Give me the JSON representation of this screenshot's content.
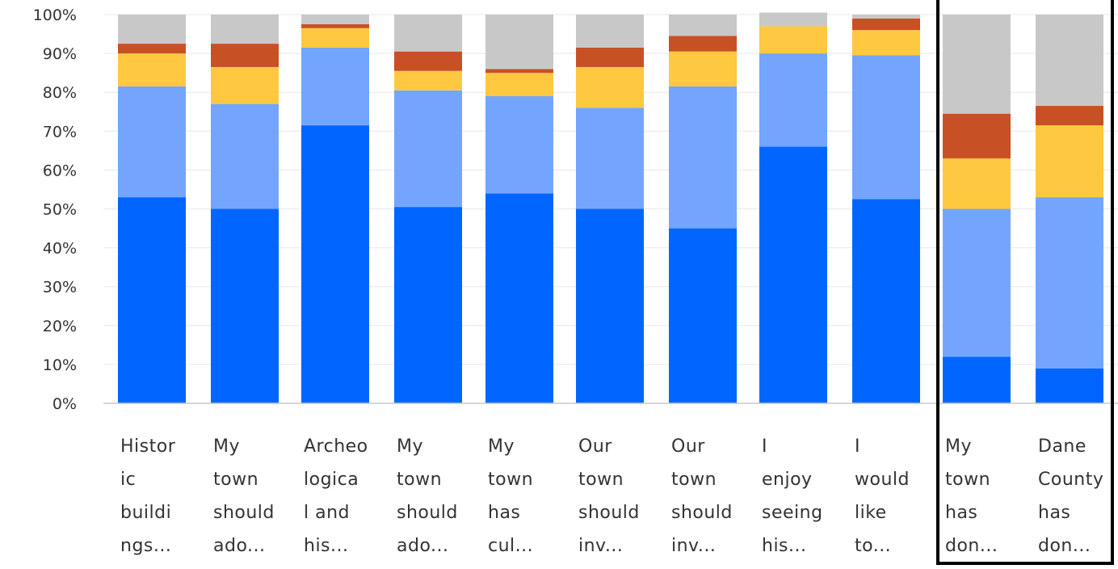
{
  "chart_data": {
    "type": "bar",
    "stacked": true,
    "title": "",
    "xlabel": "",
    "ylabel": "",
    "ylim": [
      0,
      100
    ],
    "y_ticks": [
      "0%",
      "10%",
      "20%",
      "30%",
      "40%",
      "50%",
      "60%",
      "70%",
      "80%",
      "90%",
      "100%"
    ],
    "grid": true,
    "legend": "none",
    "categories": [
      "Histor\nic\nbuildi\nngs...",
      "My\ntown\nshould\nado...",
      "Archeo\nlogica\nl and\nhis...",
      "My\ntown\nshould\nado...",
      "My\ntown\nhas\ncul...",
      "Our\ntown\nshould\ninv...",
      "Our\ntown\nshould\ninv...",
      "I\nenjoy\nseeing\nhis...",
      "I\nwould\nlike\nto...",
      "My\ntown\nhas\ndon...",
      "Dane\nCounty\nhas\ndon..."
    ],
    "series": [
      {
        "color": "#0066ff",
        "values": [
          53,
          50,
          71.5,
          50.5,
          54,
          50,
          45,
          66,
          52.5,
          12,
          9
        ]
      },
      {
        "color": "#73a5ff",
        "values": [
          28.5,
          27,
          20,
          30,
          25,
          26,
          36.5,
          24,
          37,
          38,
          44
        ]
      },
      {
        "color": "#ffc840",
        "values": [
          8.5,
          9.5,
          5,
          5,
          6,
          10.5,
          9,
          7,
          6.5,
          13,
          18.5
        ]
      },
      {
        "color": "#c85025",
        "values": [
          2.5,
          6,
          1,
          5,
          1,
          5,
          4,
          0,
          3,
          11.5,
          5
        ]
      },
      {
        "color": "#c8c8c8",
        "values": [
          7.5,
          7.5,
          2.5,
          9.5,
          14,
          8.5,
          5.5,
          3.5,
          1,
          25.5,
          23.5
        ]
      }
    ]
  }
}
